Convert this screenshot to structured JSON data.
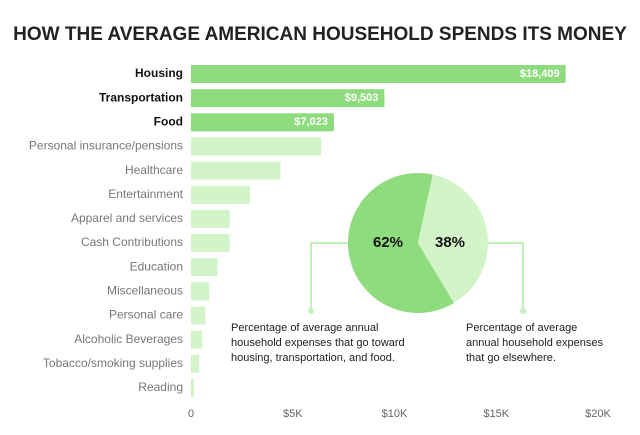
{
  "chart_data": [
    {
      "type": "bar",
      "orientation": "horizontal",
      "title": "HOW THE AVERAGE AMERICAN HOUSEHOLD SPENDS ITS MONEY",
      "categories": [
        "Housing",
        "Transportation",
        "Food",
        "Personal insurance/pensions",
        "Healthcare",
        "Entertainment",
        "Apparel and services",
        "Cash Contributions",
        "Education",
        "Miscellaneous",
        "Personal care",
        "Alcoholic Beverages",
        "Tobacco/smoking supplies",
        "Reading"
      ],
      "values": [
        18409,
        9503,
        7023,
        6400,
        4400,
        2900,
        1900,
        1900,
        1300,
        900,
        700,
        550,
        400,
        150
      ],
      "value_labels": [
        "$18,409",
        "$9,503",
        "$7,023",
        null,
        null,
        null,
        null,
        null,
        null,
        null,
        null,
        null,
        null,
        null
      ],
      "colors": [
        "#8edc7e",
        "#8edc7e",
        "#8edc7e",
        "#d3f4c9",
        "#d3f4c9",
        "#d3f4c9",
        "#d3f4c9",
        "#d3f4c9",
        "#d3f4c9",
        "#d3f4c9",
        "#d3f4c9",
        "#d3f4c9",
        "#d3f4c9",
        "#d3f4c9"
      ],
      "xlim": [
        0,
        20000
      ],
      "xticks": [
        0,
        {
          "value": 5000,
          "label": "$5K"
        },
        {
          "value": 10000,
          "label": "$10K"
        },
        {
          "value": 15000,
          "label": "$15K"
        },
        {
          "value": 20000,
          "label": "$20K"
        }
      ],
      "grid": false
    },
    {
      "type": "pie",
      "values": [
        62,
        38
      ],
      "value_labels": [
        "62%",
        "38%"
      ],
      "colors": [
        "#8edc7e",
        "#d3f4c9"
      ],
      "annotations": [
        [
          "Percentage of average annual",
          "household expenses that go toward",
          "housing, transportation, and food."
        ],
        [
          "Percentage of average",
          "annual household expenses",
          "that go elsewhere."
        ]
      ]
    }
  ]
}
